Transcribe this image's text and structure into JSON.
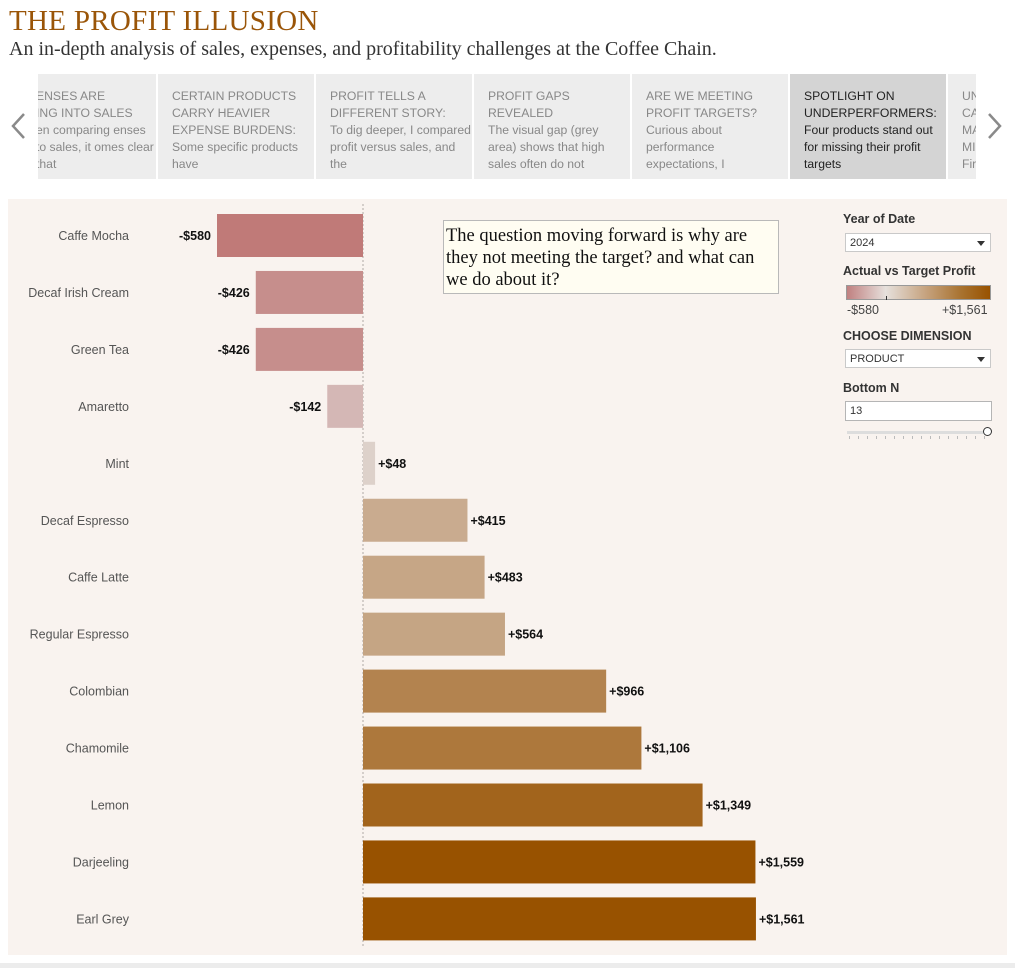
{
  "header": {
    "title": "THE PROFIT ILLUSION",
    "subtitle": "An in-depth analysis of sales, expenses, and profitability challenges at the Coffee Chain."
  },
  "story": {
    "points": [
      {
        "head": "ENSES ARE\nING INTO SALES",
        "body": "en comparing enses to sales, it omes clear that"
      },
      {
        "head": "CERTAIN PRODUCTS\nCARRY HEAVIER\nEXPENSE BURDENS:",
        "body": "Some specific products have"
      },
      {
        "head": "PROFIT TELLS A\nDIFFERENT STORY:",
        "body": "To dig deeper, I compared profit versus sales, and the"
      },
      {
        "head": "PROFIT GAPS\nREVEALED",
        "body": "The visual gap (grey area) shows that high sales often do not"
      },
      {
        "head": "ARE WE MEETING\nPROFIT TARGETS?",
        "body": "Curious about performance expectations, I"
      },
      {
        "head": "SPOTLIGHT ON\nUNDERPERFORMERS:",
        "body": "Four products stand out for missing their profit targets"
      },
      {
        "head": "UN\nCA\nMA\nMI",
        "body": "Fir"
      }
    ],
    "active_index": 5
  },
  "annotation": {
    "text": "The question moving forward is why are they not meeting the target? and what can we do about it?"
  },
  "controls": {
    "year_label": "Year of Date",
    "year_value": "2024",
    "legend_title": "Actual vs Target Profit",
    "legend_min": "-$580",
    "legend_max": "+$1,561",
    "dimension_label": "CHOOSE DIMENSION",
    "dimension_value": "PRODUCT",
    "bottom_n_label": "Bottom N",
    "bottom_n_value": "13"
  },
  "colors": {
    "accent_title": "#9a5508",
    "panel_bg": "#f9f3ef",
    "negative": "#c07a78",
    "neutral": "#ddd5d2",
    "positive": "#985200"
  },
  "chart_data": {
    "type": "bar",
    "orientation": "horizontal",
    "categories": [
      "Caffe Mocha",
      "Decaf Irish Cream",
      "Green Tea",
      "Amaretto",
      "Mint",
      "Decaf Espresso",
      "Caffe Latte",
      "Regular Espresso",
      "Colombian",
      "Chamomile",
      "Lemon",
      "Darjeeling",
      "Earl Grey"
    ],
    "values": [
      -580,
      -426,
      -426,
      -142,
      48,
      415,
      483,
      564,
      966,
      1106,
      1349,
      1559,
      1561
    ],
    "labels": [
      "-$580",
      "-$426",
      "-$426",
      "-$142",
      "+$48",
      "+$415",
      "+$483",
      "+$564",
      "+$966",
      "+$1,106",
      "+$1,349",
      "+$1,559",
      "+$1,561"
    ],
    "xlim": [
      -580,
      1561
    ],
    "zero_reference_line": "dotted",
    "grid": false
  }
}
